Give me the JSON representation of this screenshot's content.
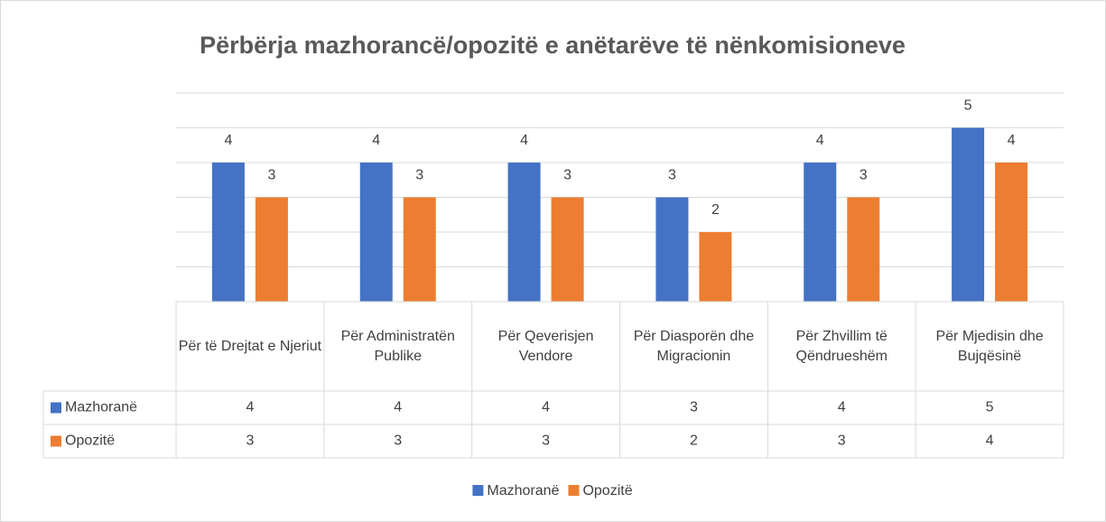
{
  "chart_data": {
    "type": "bar",
    "title": "Përbërja mazhorancë/opozitë e anëtarëve të nënkomisioneve",
    "categories": [
      "Për të Drejtat e Njeriut",
      "Për Administratën Publike",
      "Për Qeverisjen Vendore",
      "Për Diasporën dhe Migracionin",
      "Për Zhvillim të Qëndrueshëm",
      "Për Mjedisin dhe Bujqësinë"
    ],
    "series": [
      {
        "name": "Mazhoranë",
        "color": "#4472c4",
        "values": [
          4,
          4,
          4,
          3,
          4,
          5
        ]
      },
      {
        "name": "Opozitë",
        "color": "#ed7d31",
        "values": [
          3,
          3,
          3,
          2,
          3,
          4
        ]
      }
    ],
    "ylim": [
      0,
      6
    ],
    "yticks": [
      0,
      1,
      2,
      3,
      4,
      5,
      6
    ],
    "grid": true,
    "legend": "bottom",
    "data_table": true
  }
}
